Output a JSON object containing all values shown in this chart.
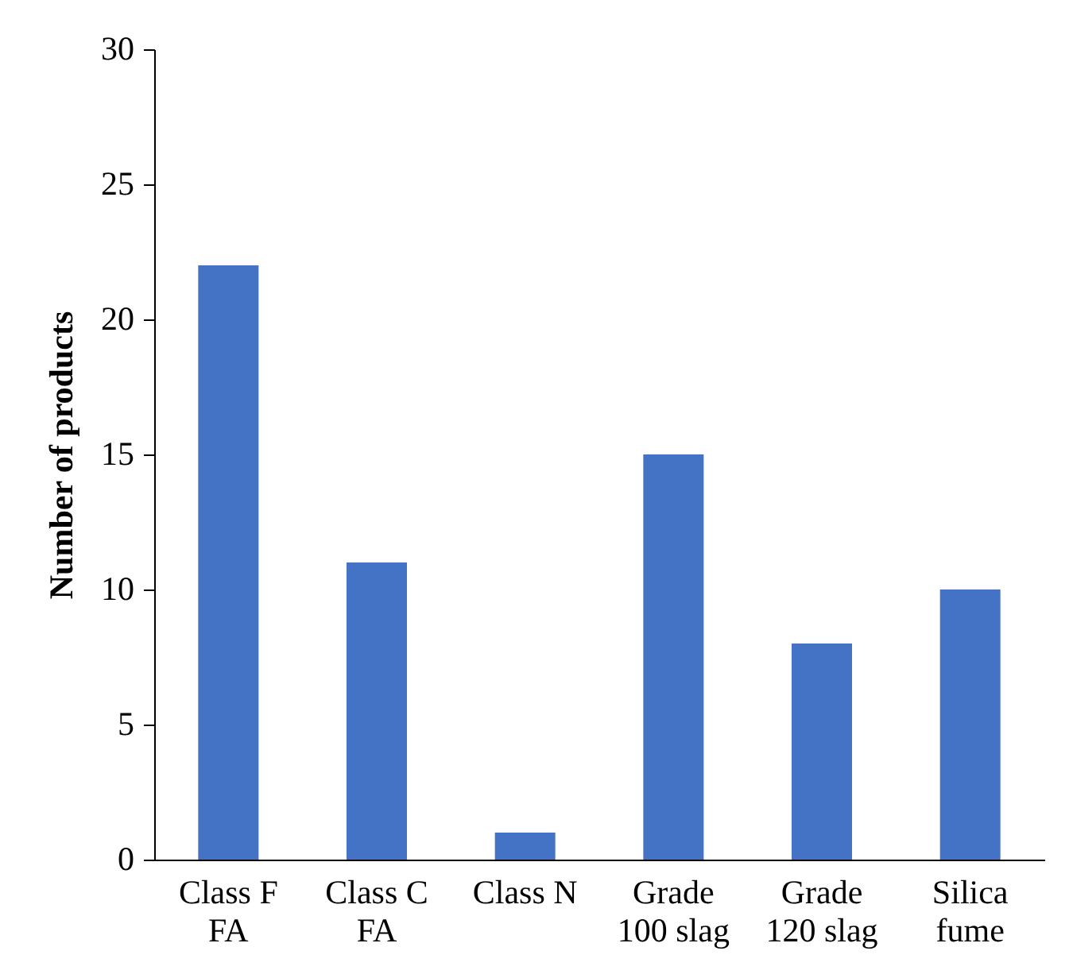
{
  "chart_data": {
    "type": "bar",
    "ylabel": "Number of products",
    "categories": [
      "Class F\nFA",
      "Class C\nFA",
      "Class N",
      "Grade\n100 slag",
      "Grade\n120 slag",
      "Silica\nfume"
    ],
    "values": [
      22,
      11,
      1,
      15,
      8,
      10
    ],
    "color": "#4472c4",
    "ylim": [
      0,
      30
    ],
    "yticks": [
      0,
      5,
      10,
      15,
      20,
      25,
      30
    ],
    "grid": false
  }
}
